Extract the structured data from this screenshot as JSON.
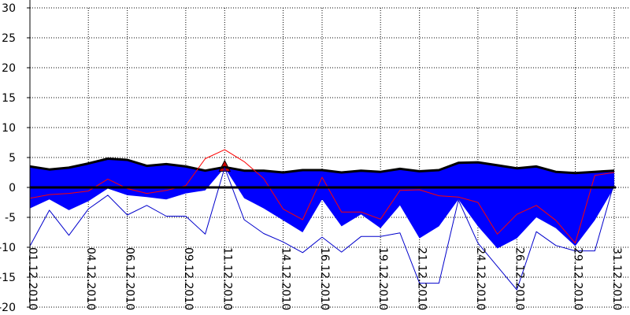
{
  "chart_data": {
    "type": "area",
    "title": "",
    "xlabel": "",
    "ylabel": "",
    "ylim": [
      -20,
      30
    ],
    "yticks": [
      -20,
      -15,
      -10,
      -5,
      0,
      5,
      10,
      15,
      20,
      25,
      30
    ],
    "grid": true,
    "x": [
      "01.12.2010",
      "02.12.2010",
      "03.12.2010",
      "04.12.2010",
      "05.12.2010",
      "06.12.2010",
      "07.12.2010",
      "08.12.2010",
      "09.12.2010",
      "10.12.2010",
      "11.12.2010",
      "12.12.2010",
      "13.12.2010",
      "14.12.2010",
      "15.12.2010",
      "16.12.2010",
      "17.12.2010",
      "18.12.2010",
      "19.12.2010",
      "20.12.2010",
      "21.12.2010",
      "22.12.2010",
      "23.12.2010",
      "24.12.2010",
      "25.12.2010",
      "26.12.2010",
      "27.12.2010",
      "28.12.2010",
      "29.12.2010",
      "30.12.2010",
      "31.12.2010"
    ],
    "xtick_labels": [
      "01.12.2010",
      "04.12.2010",
      "06.12.2010",
      "09.12.2010",
      "11.12.2010",
      "14.12.2010",
      "16.12.2010",
      "19.12.2010",
      "21.12.2010",
      "24.12.2010",
      "26.12.2010",
      "29.12.2010",
      "31.12.2010"
    ],
    "series": [
      {
        "role": "max-band",
        "color": "#000000",
        "values": [
          3.5,
          3.0,
          3.3,
          4.0,
          4.8,
          4.6,
          3.6,
          3.9,
          3.5,
          2.8,
          3.4,
          2.8,
          2.8,
          2.5,
          2.9,
          2.9,
          2.5,
          2.8,
          2.6,
          3.1,
          2.7,
          2.9,
          4.1,
          4.2,
          3.7,
          3.2,
          3.5,
          2.6,
          2.4,
          2.6,
          2.8
        ]
      },
      {
        "role": "min-band",
        "color": "#000000",
        "values": [
          -3.5,
          -2.0,
          -3.8,
          -2.3,
          -0.2,
          -1.3,
          -1.6,
          -2.0,
          -1.0,
          -0.5,
          3.3,
          -1.8,
          -3.5,
          -5.5,
          -7.5,
          -2.0,
          -6.5,
          -4.5,
          -6.8,
          -3.0,
          -8.5,
          -6.5,
          -2.0,
          -6.5,
          -10.2,
          -8.5,
          -5.0,
          -6.8,
          -9.8,
          -5.5,
          0.0
        ]
      },
      {
        "role": "mean",
        "color": "#ff0000",
        "values": [
          -1.8,
          -1.2,
          -1.0,
          -0.6,
          1.4,
          -0.2,
          -1.0,
          -0.5,
          0.3,
          4.8,
          6.3,
          4.3,
          1.5,
          -3.6,
          -5.4,
          1.7,
          -4.1,
          -4.1,
          -5.3,
          -0.5,
          -0.4,
          -1.4,
          -1.6,
          -2.5,
          -7.8,
          -4.5,
          -3.0,
          -5.5,
          -9.3,
          2.0,
          2.5
        ]
      },
      {
        "role": "lowest",
        "color": "#0000cc",
        "values": [
          -9.8,
          -3.8,
          -8.0,
          -3.6,
          -1.3,
          -4.6,
          -3.0,
          -4.8,
          -4.8,
          -7.8,
          3.3,
          -5.4,
          -7.7,
          -9.1,
          -10.9,
          -8.3,
          -10.8,
          -8.2,
          -8.2,
          -7.6,
          -16.0,
          -16.0,
          -2.1,
          -9.3,
          -13.2,
          -17.1,
          -7.4,
          -9.7,
          -10.6,
          -10.6,
          0.8
        ]
      }
    ],
    "zero_line": 0,
    "marker": {
      "x": "11.12.2010",
      "y": 4.5,
      "color": "#cc0000",
      "shape": "triangle"
    }
  }
}
